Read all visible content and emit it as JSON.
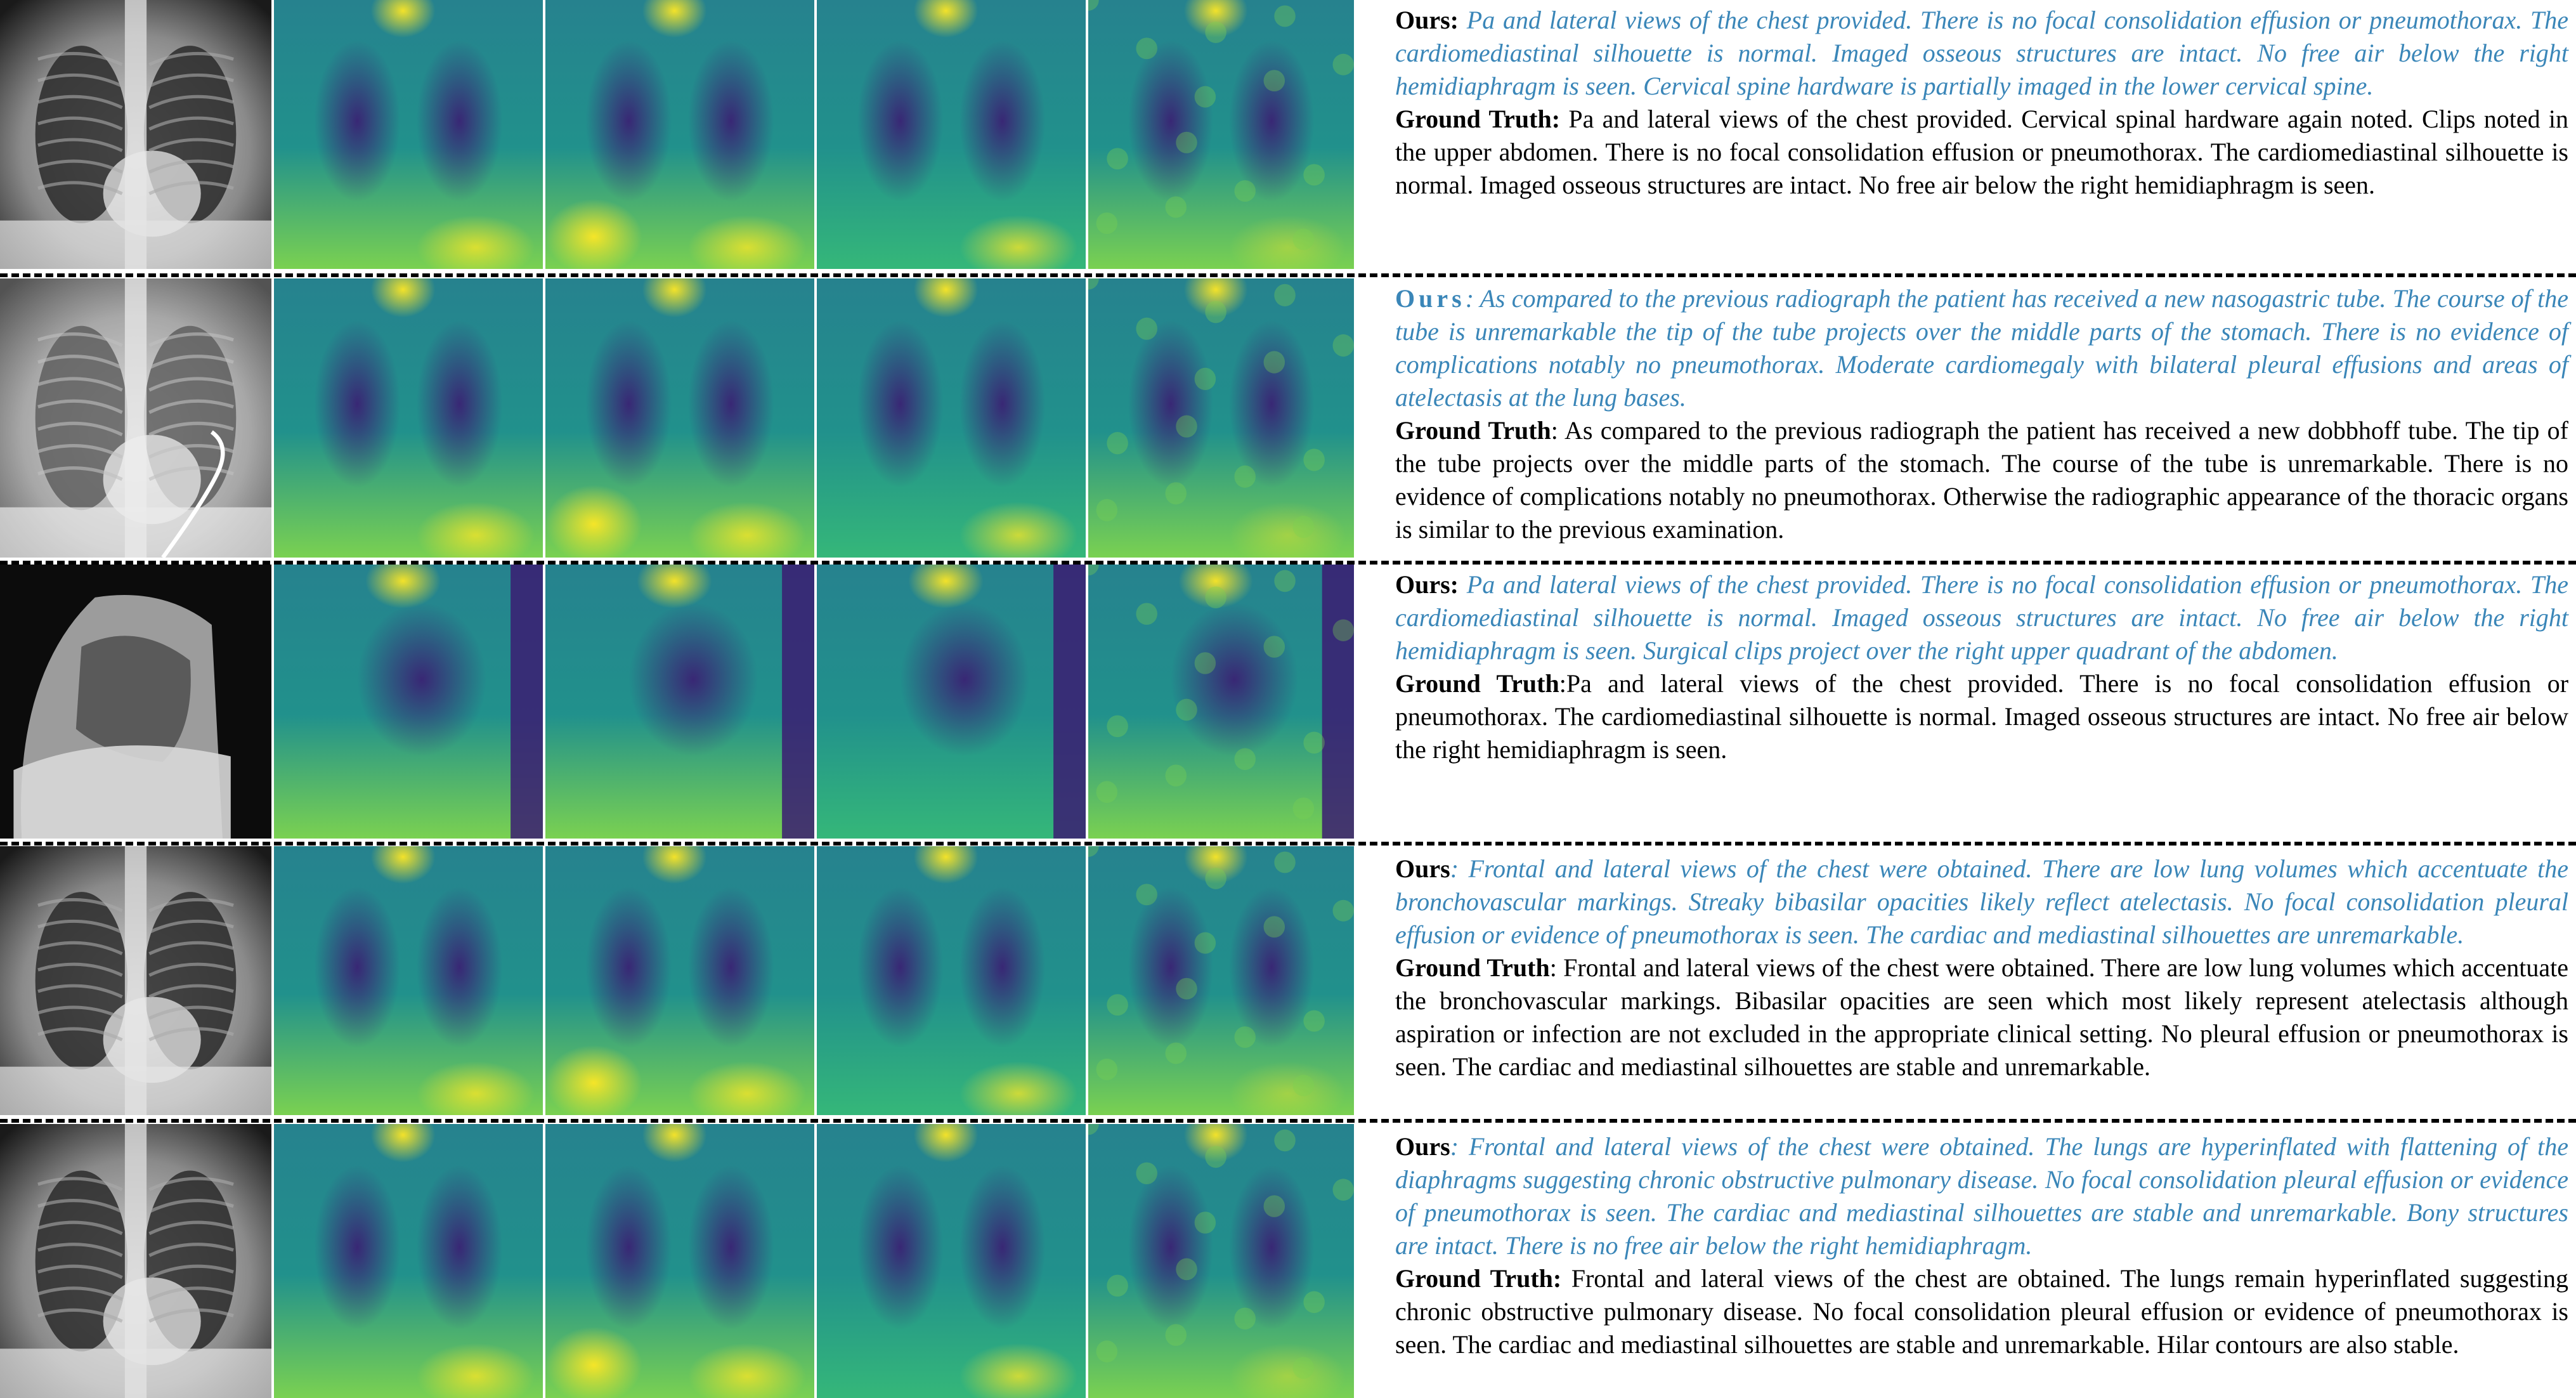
{
  "rows": [
    {
      "ours_label": "Ours:",
      "ours_text": " Pa and lateral views of the chest provided. There is no focal consolidation effusion or pneumothorax. The cardiomediastinal silhouette is normal. Imaged osseous structures are intact. No free air below the right hemidiaphragm is seen. Cervical spine hardware is partially imaged in the lower cervical spine.",
      "gt_label": "Ground Truth:",
      "gt_text": " Pa and lateral views of the chest provided. Cervical spinal hardware again noted. Clips noted in the upper abdomen. There is no focal consolidation effusion or pneumothorax. The cardiomediastinal silhouette is normal. Imaged osseous structures are intact. No free air below the right hemidiaphragm is seen."
    },
    {
      "ours_label": "Ours",
      "ours_text": ": As compared to the previous radiograph the patient has received a new nasogastric tube. The course of the tube is unremarkable the tip of the tube projects over the middle parts of the stomach. There is no evidence of complications notably no pneumothorax. Moderate cardiomegaly with bilateral pleural effusions and areas of atelectasis at the lung bases.",
      "gt_label": "Ground Truth",
      "gt_text": ": As compared to the previous radiograph the patient has received a new dobbhoff tube. The tip of the tube projects over the middle parts of the stomach. The course of the tube is unremarkable. There is no evidence of complications notably no pneumothorax. Otherwise the radiographic appearance of the thoracic organs is similar to the previous examination."
    },
    {
      "ours_label": "Ours:",
      "ours_text": " Pa and lateral views of the chest provided. There is no focal consolidation effusion or pneumothorax. The cardiomediastinal silhouette is normal. Imaged osseous structures are intact. No free air below the right hemidiaphragm is seen. Surgical clips project over the right upper quadrant of the abdomen.",
      "gt_label": "Ground Truth",
      "gt_text": ":Pa and lateral views of the chest provided. There is no focal consolidation effusion or pneumothorax. The cardiomediastinal silhouette is normal. Imaged osseous structures are intact. No free air below the right hemidiaphragm is seen."
    },
    {
      "ours_label": "Ours",
      "ours_text": ": Frontal and lateral views of the chest were obtained. There are low lung volumes which accentuate the bronchovascular markings. Streaky bibasilar opacities likely reflect atelectasis. No focal consolidation pleural effusion or evidence of pneumothorax is seen. The cardiac and mediastinal silhouettes are unremarkable.",
      "gt_label": "Ground Truth",
      "gt_text": ": Frontal and lateral views of the chest were obtained. There are low lung volumes which accentuate the bronchovascular markings. Bibasilar opacities are seen which most likely represent atelectasis although aspiration or infection are not excluded in the appropriate clinical setting. No pleural effusion or pneumothorax is seen. The cardiac and mediastinal silhouettes are stable and unremarkable."
    },
    {
      "ours_label": "Ours",
      "ours_text": ": Frontal and lateral views of the chest were obtained. The lungs are hyperinflated with flattening of the diaphragms suggesting chronic obstructive pulmonary disease. No focal consolidation pleural effusion or evidence of pneumothorax is seen. The cardiac and mediastinal silhouettes are stable and unremarkable. Bony structures are intact. There is no free air below the right hemidiaphragm.",
      "gt_label": "Ground Truth:",
      "gt_text": " Frontal and lateral views of the chest are obtained. The lungs remain hyperinflated suggesting chronic obstructive pulmonary disease. No focal consolidation pleural effusion or evidence of pneumothorax is seen. The cardiac and mediastinal silhouettes are stable and unremarkable. Hilar contours are also stable."
    }
  ],
  "colors": {
    "ours_text": "#3a86b8",
    "viridis_dark": "#440154",
    "viridis_mid": "#21918c",
    "viridis_bright": "#fde725"
  }
}
